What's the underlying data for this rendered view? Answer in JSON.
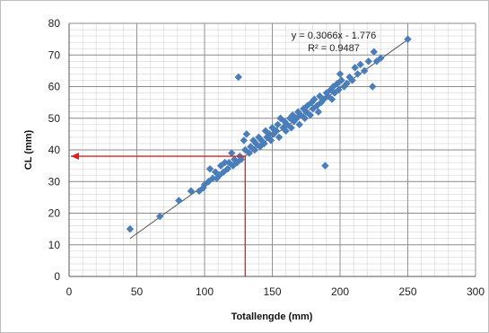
{
  "chart_data": {
    "type": "scatter",
    "xlabel": "Totallengde (mm)",
    "ylabel": "CL (mm)",
    "xlim": [
      0,
      300
    ],
    "ylim": [
      0,
      80
    ],
    "x_ticks": [
      0,
      50,
      100,
      150,
      200,
      250,
      300
    ],
    "y_ticks": [
      0,
      10,
      20,
      30,
      40,
      50,
      60,
      70,
      80
    ],
    "grid": true,
    "minor_grid": true,
    "trendline": {
      "slope": 0.3066,
      "intercept": -1.776,
      "r2": 0.9487,
      "equation_label": "y = 0.3066x - 1.776",
      "r2_label": "R² = 0.9487",
      "color": "#555555"
    },
    "marker_color": "#4a7ebb",
    "arrow_color": "#e02020",
    "lookup_arrow": {
      "x": 130,
      "y": 38
    },
    "points": [
      [
        45,
        15
      ],
      [
        67,
        19
      ],
      [
        81,
        24
      ],
      [
        90,
        27
      ],
      [
        96,
        27
      ],
      [
        99,
        28
      ],
      [
        100,
        29
      ],
      [
        103,
        30
      ],
      [
        104,
        34
      ],
      [
        106,
        31
      ],
      [
        108,
        33
      ],
      [
        109,
        31
      ],
      [
        111,
        32
      ],
      [
        112,
        35
      ],
      [
        114,
        33
      ],
      [
        115,
        36
      ],
      [
        117,
        34
      ],
      [
        118,
        36
      ],
      [
        120,
        39
      ],
      [
        121,
        35
      ],
      [
        122,
        37
      ],
      [
        124,
        36
      ],
      [
        125,
        63
      ],
      [
        126,
        38
      ],
      [
        127,
        37
      ],
      [
        129,
        43
      ],
      [
        130,
        40
      ],
      [
        131,
        45
      ],
      [
        133,
        39
      ],
      [
        134,
        41
      ],
      [
        136,
        43
      ],
      [
        137,
        40
      ],
      [
        138,
        42
      ],
      [
        140,
        44
      ],
      [
        141,
        41
      ],
      [
        142,
        43
      ],
      [
        144,
        42
      ],
      [
        145,
        46
      ],
      [
        146,
        44
      ],
      [
        148,
        45
      ],
      [
        149,
        43
      ],
      [
        150,
        47
      ],
      [
        151,
        45
      ],
      [
        153,
        46
      ],
      [
        154,
        48
      ],
      [
        155,
        44
      ],
      [
        156,
        50
      ],
      [
        158,
        47
      ],
      [
        159,
        49
      ],
      [
        160,
        46
      ],
      [
        161,
        48
      ],
      [
        163,
        50
      ],
      [
        164,
        47
      ],
      [
        165,
        51
      ],
      [
        166,
        49
      ],
      [
        168,
        50
      ],
      [
        169,
        52
      ],
      [
        170,
        48
      ],
      [
        171,
        51
      ],
      [
        173,
        53
      ],
      [
        174,
        50
      ],
      [
        175,
        52
      ],
      [
        176,
        54
      ],
      [
        178,
        51
      ],
      [
        179,
        55
      ],
      [
        180,
        53
      ],
      [
        181,
        56
      ],
      [
        183,
        54
      ],
      [
        184,
        52
      ],
      [
        185,
        57
      ],
      [
        186,
        55
      ],
      [
        188,
        56
      ],
      [
        189,
        35
      ],
      [
        190,
        58
      ],
      [
        191,
        57
      ],
      [
        193,
        59
      ],
      [
        194,
        56
      ],
      [
        195,
        60
      ],
      [
        196,
        58
      ],
      [
        198,
        61
      ],
      [
        199,
        59
      ],
      [
        200,
        64
      ],
      [
        201,
        62
      ],
      [
        203,
        60
      ],
      [
        205,
        61
      ],
      [
        207,
        63
      ],
      [
        209,
        62
      ],
      [
        211,
        66
      ],
      [
        213,
        64
      ],
      [
        215,
        67
      ],
      [
        218,
        65
      ],
      [
        221,
        68
      ],
      [
        224,
        60
      ],
      [
        225,
        71
      ],
      [
        227,
        68
      ],
      [
        230,
        69
      ],
      [
        250,
        75
      ]
    ]
  }
}
